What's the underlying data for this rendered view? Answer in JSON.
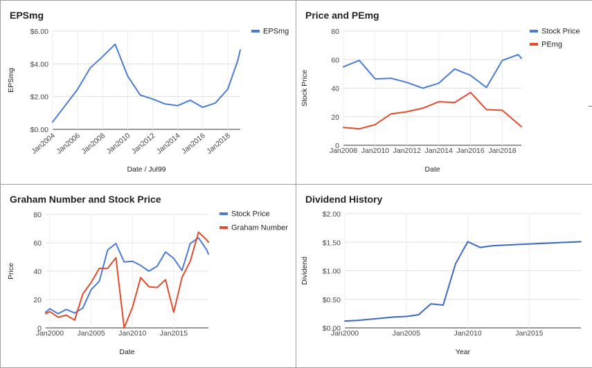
{
  "chart_data": [
    {
      "type": "line",
      "title": "EPSmg",
      "xlabel": "Date / Jul99",
      "ylabel": "EPSmg",
      "xlim": [
        2004,
        2019
      ],
      "ylim": [
        0,
        6
      ],
      "y_ticks": [
        "$0.00",
        "$2.00",
        "$4.00",
        "$6.00"
      ],
      "x_ticks": [
        "Jan2004",
        "Jan2006",
        "Jan2008",
        "Jan2010",
        "Jan2012",
        "Jan2014",
        "Jan2016",
        "Jan2018"
      ],
      "grid": true,
      "legend": "right",
      "series": [
        {
          "name": "EPSmg",
          "color": "#4a7bd3",
          "x": [
            2004,
            2005,
            2006,
            2007,
            2008,
            2009,
            2010,
            2011,
            2012,
            2013,
            2014,
            2015,
            2016,
            2017,
            2018,
            2018.8,
            2019
          ],
          "y": [
            0.45,
            1.45,
            2.45,
            3.75,
            4.45,
            5.2,
            3.25,
            2.1,
            1.85,
            1.55,
            1.45,
            1.78,
            1.35,
            1.6,
            2.45,
            4.2,
            4.85
          ]
        }
      ]
    },
    {
      "type": "line",
      "title": "Price and PEmg",
      "xlabel": "Date",
      "ylabel": "Stock Price",
      "xlim": [
        2008,
        2019.2
      ],
      "ylim": [
        0,
        80
      ],
      "y_ticks": [
        "0",
        "20",
        "40",
        "60",
        "80"
      ],
      "x_ticks": [
        "Jan2008",
        "Jan2010",
        "Jan2012",
        "Jan2014",
        "Jan2016",
        "Jan2018"
      ],
      "grid": true,
      "legend": "right",
      "series": [
        {
          "name": "Stock Price",
          "color": "#4a7bd3",
          "x": [
            2008,
            2009,
            2010,
            2011,
            2012,
            2013,
            2014,
            2015,
            2016,
            2017,
            2018,
            2019,
            2019.2
          ],
          "y": [
            55,
            59.5,
            46.5,
            47,
            44,
            40,
            43.5,
            53.5,
            49,
            40.5,
            59.5,
            63.5,
            61
          ]
        },
        {
          "name": "PEmg",
          "color": "#e24a2b",
          "x": [
            2008,
            2009,
            2010,
            2011,
            2012,
            2013,
            2014,
            2015,
            2016,
            2017,
            2018,
            2019,
            2019.2
          ],
          "y": [
            12.5,
            11.5,
            14.5,
            22,
            23.5,
            26,
            30.5,
            30,
            37,
            25,
            24.5,
            15,
            13
          ]
        }
      ]
    },
    {
      "type": "line",
      "title": "Graham Number and Stock Price",
      "xlabel": "Date",
      "ylabel": "Price",
      "xlim": [
        1999.5,
        2019.2
      ],
      "ylim": [
        0,
        80
      ],
      "y_ticks": [
        "0",
        "20",
        "40",
        "60",
        "80"
      ],
      "x_ticks": [
        "Jan2000",
        "Jan2005",
        "Jan2010",
        "Jan2015"
      ],
      "grid": true,
      "legend": "right",
      "series": [
        {
          "name": "Stock Price",
          "color": "#4a7bd3",
          "x": [
            1999.5,
            2000,
            2001,
            2002,
            2003,
            2004,
            2005,
            2006,
            2007,
            2008,
            2009,
            2010,
            2011,
            2012,
            2013,
            2014,
            2015,
            2016,
            2017,
            2018,
            2019,
            2019.2
          ],
          "y": [
            11,
            13.5,
            10,
            13,
            10.5,
            14,
            27,
            33,
            55,
            59.5,
            46.5,
            47,
            44,
            40,
            43.5,
            53.5,
            49,
            40.5,
            59.5,
            63.5,
            55,
            52
          ]
        },
        {
          "name": "Graham Number",
          "color": "#e24a2b",
          "x": [
            1999.5,
            2000,
            2001,
            2002,
            2003,
            2004,
            2005,
            2006,
            2007,
            2008,
            2009,
            2010,
            2011,
            2012,
            2013,
            2014,
            2015,
            2016,
            2017,
            2018,
            2019,
            2019.2
          ],
          "y": [
            10,
            11.5,
            7.5,
            9,
            5.5,
            24,
            32,
            42,
            42,
            49.5,
            0,
            14.5,
            35.5,
            29,
            28.5,
            34,
            11,
            35.5,
            47,
            67.5,
            62,
            60.5
          ]
        }
      ]
    },
    {
      "type": "line",
      "title": "Dividend History",
      "xlabel": "Year",
      "ylabel": "Dividend",
      "xlim": [
        2000,
        2019.2
      ],
      "ylim": [
        0,
        2
      ],
      "y_ticks": [
        "$0.00",
        "$0.50",
        "$1.00",
        "$1.50",
        "$2.00"
      ],
      "x_ticks": [
        "Jan2000",
        "Jan2005",
        "Jan2010",
        "Jan2015"
      ],
      "grid": true,
      "legend": "none",
      "series": [
        {
          "name": "",
          "color": "#3a67c4",
          "x": [
            2000,
            2001,
            2002,
            2003,
            2004,
            2005,
            2006,
            2007,
            2008,
            2009,
            2010,
            2011,
            2012,
            2013,
            2014,
            2015,
            2016,
            2017,
            2018,
            2019.2
          ],
          "y": [
            0.12,
            0.13,
            0.15,
            0.17,
            0.19,
            0.2,
            0.23,
            0.42,
            0.4,
            1.12,
            1.51,
            1.41,
            1.44,
            1.45,
            1.46,
            1.47,
            1.48,
            1.49,
            1.5,
            1.51
          ]
        }
      ]
    }
  ]
}
